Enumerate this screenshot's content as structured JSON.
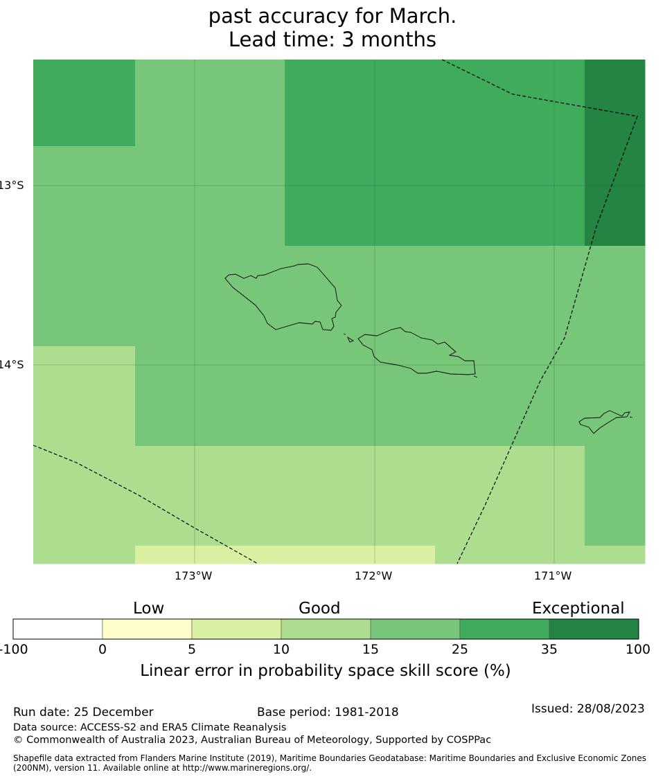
{
  "title": {
    "line1": "past accuracy for March.",
    "line2": "Lead time: 3 months"
  },
  "map": {
    "lat_labels": [
      "13°S",
      "14°S"
    ],
    "lon_labels": [
      "173°W",
      "172°W",
      "171°W"
    ],
    "skill_grid": {
      "note_units": "skill category colours per grid cell, rows top to bottom",
      "rows": [
        [
          "#41ab5d",
          "#78c679",
          "#78c679",
          "#41ab5d",
          "#41ab5d",
          "#41ab5d",
          "#238443"
        ],
        [
          "#78c679",
          "#78c679",
          "#78c679",
          "#41ab5d",
          "#41ab5d",
          "#41ab5d",
          "#238443"
        ],
        [
          "#78c679",
          "#78c679",
          "#78c679",
          "#78c679",
          "#78c679",
          "#78c679",
          "#78c679"
        ],
        [
          "#addd8e",
          "#78c679",
          "#78c679",
          "#78c679",
          "#78c679",
          "#78c679",
          "#78c679"
        ],
        [
          "#addd8e",
          "#addd8e",
          "#addd8e",
          "#addd8e",
          "#addd8e",
          "#addd8e",
          "#78c679"
        ],
        [
          "#addd8e",
          "#d9f0a3",
          "#d9f0a3",
          "#d9f0a3",
          "#addd8e",
          "#addd8e",
          "#addd8e"
        ]
      ]
    }
  },
  "colorbar": {
    "categories": [
      "Low",
      "Good",
      "Exceptional"
    ],
    "ticks": [
      "-100",
      "0",
      "5",
      "10",
      "15",
      "25",
      "35",
      "100"
    ],
    "colors": [
      "#ffffff",
      "#ffffcc",
      "#d9f0a3",
      "#addd8e",
      "#78c679",
      "#41ab5d",
      "#238443"
    ],
    "label": "Linear error in probability space skill score (%)"
  },
  "footer": {
    "run_date": "Run date: 25 December",
    "base_period": "Base period: 1981-2018",
    "issued": "Issued: 28/08/2023",
    "data_source": "Data source: ACCESS-S2 and ERA5 Climate Reanalysis",
    "copyright": "© Commonwealth of Australia 2023, Australian Bureau of Meteorology, Supported by COSPPac",
    "shapefile": "Shapefile data extracted from Flanders Marine Institute (2019), Maritime Boundaries Geodatabase: Maritime Boundaries and Exclusive Economic Zones (200NM), version 11. Available online at http://www.marineregions.org/."
  }
}
